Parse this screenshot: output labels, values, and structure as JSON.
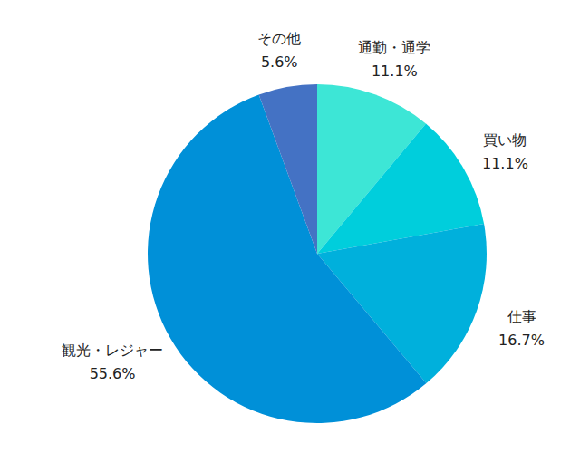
{
  "chart_data": {
    "type": "pie",
    "categories": [
      "通勤・通学",
      "買い物",
      "仕事",
      "観光・レジャー",
      "その他"
    ],
    "values": [
      11.1,
      11.1,
      16.7,
      55.6,
      5.6
    ],
    "value_labels": [
      "11.1%",
      "11.1%",
      "16.7%",
      "55.6%",
      "5.6%"
    ],
    "colors": [
      "#3de6d6",
      "#00cedc",
      "#00b0dc",
      "#0090d8",
      "#4472c4"
    ],
    "data_labels": true
  }
}
